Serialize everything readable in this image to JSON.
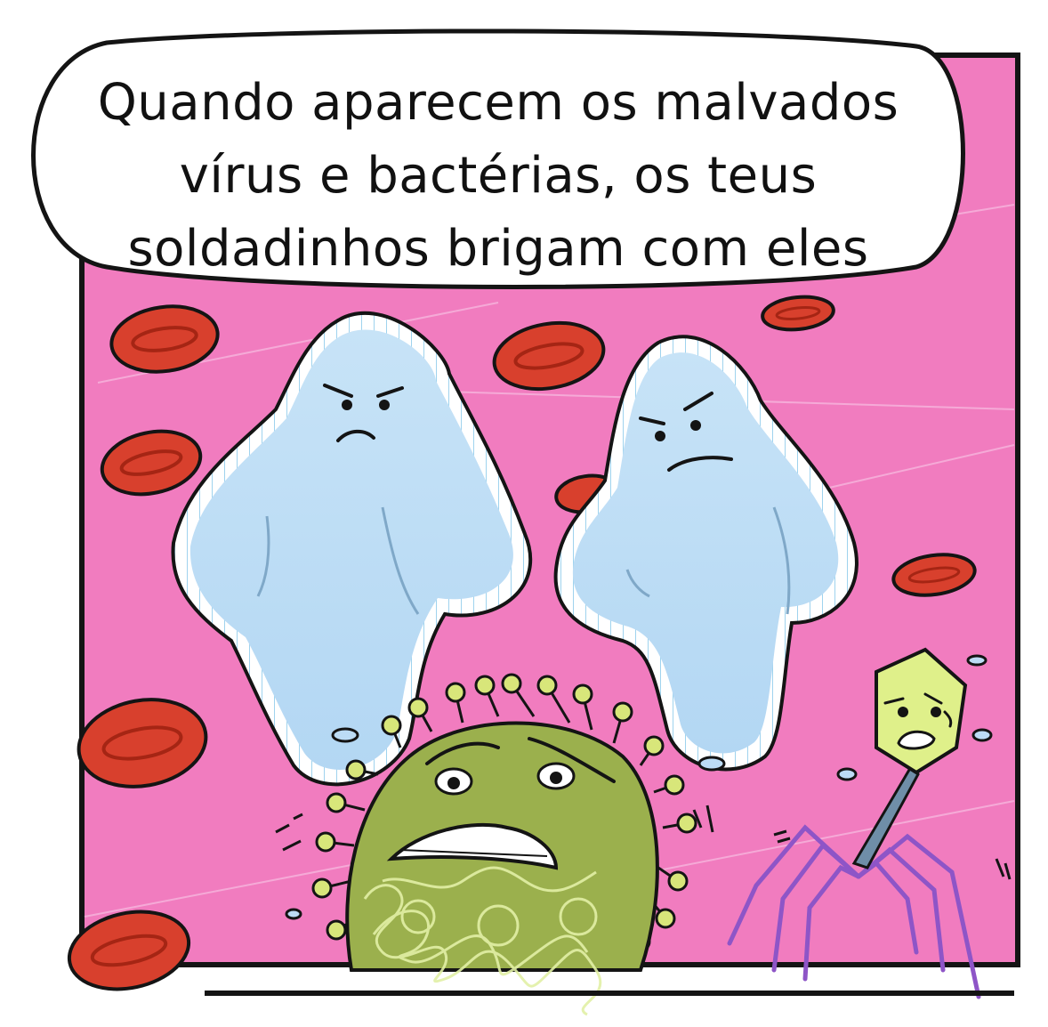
{
  "speech_bubble": {
    "lines": [
      "Quando aparecem os malvados",
      "vírus e bactérias, os teus",
      "soldadinhos brigam com eles"
    ]
  },
  "colors": {
    "background_panel": "#f17cbf",
    "red_blood_cell": "#d8402d",
    "white_blood_cell": "#bcdcf5",
    "coronavirus": "#9bb04d",
    "virus_spikes": "#d8e67a",
    "bacteriophage_head": "#dff08a",
    "bacteriophage_legs": "#8e55c7",
    "outline": "#141414"
  },
  "characters": [
    {
      "name": "white-blood-cell",
      "expression": "angry"
    },
    {
      "name": "white-blood-cell",
      "expression": "angry"
    },
    {
      "name": "coronavirus",
      "expression": "scared"
    },
    {
      "name": "bacteriophage",
      "expression": "scared"
    }
  ]
}
